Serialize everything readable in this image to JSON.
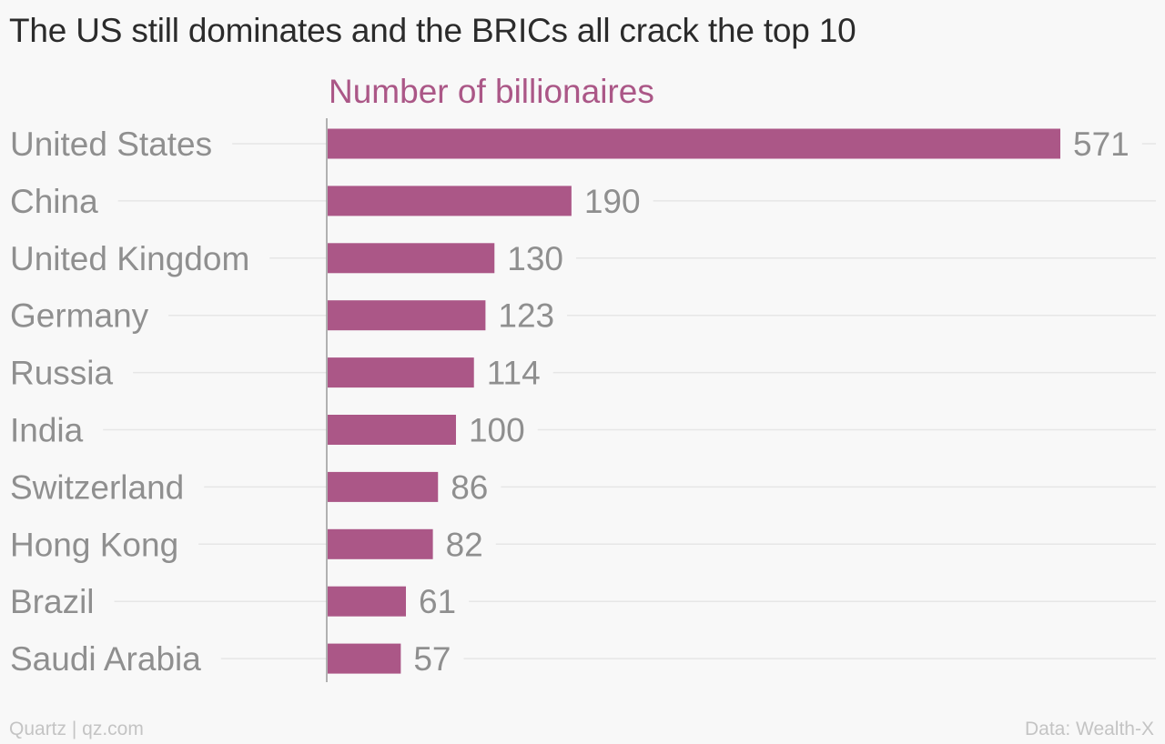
{
  "colors": {
    "bar": "#ab5787",
    "subtitle": "#ab5787",
    "category_label": "#8f8f8f",
    "value_label": "#8f8f8f",
    "gridline": "#e6e6e6",
    "axis": "#999999",
    "title": "#2b2b2b",
    "footer": "#c4c4c4",
    "background": "#f8f8f8"
  },
  "footer": {
    "left": "Quartz | qz.com",
    "right": "Data: Wealth-X"
  },
  "chart_data": {
    "type": "bar",
    "orientation": "horizontal",
    "title": "The US still dominates and the BRICs all crack the top 10",
    "subtitle": "Number of billionaires",
    "categories": [
      "United States",
      "China",
      "United Kingdom",
      "Germany",
      "Russia",
      "India",
      "Switzerland",
      "Hong Kong",
      "Brazil",
      "Saudi Arabia"
    ],
    "values": [
      571,
      190,
      130,
      123,
      114,
      100,
      86,
      82,
      61,
      57
    ],
    "xlim": [
      0,
      571
    ],
    "grid": true,
    "legend": "none"
  }
}
